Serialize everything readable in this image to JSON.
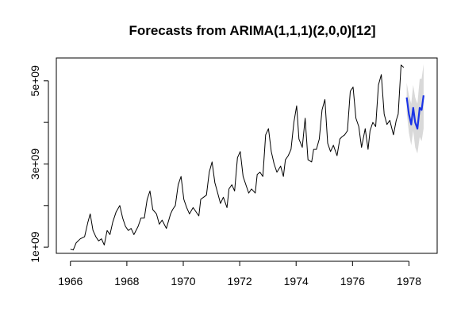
{
  "chart_data": {
    "type": "line",
    "title": "Forecasts from ARIMA(1,1,1)(2,0,0)[12]",
    "xlabel": "",
    "ylabel": "",
    "xlim": [
      1965.5,
      1979.0
    ],
    "ylim": [
      850000000,
      5550000000
    ],
    "x_ticks": [
      1966,
      1968,
      1970,
      1972,
      1974,
      1976,
      1978
    ],
    "x_tick_labels": [
      "1966",
      "1968",
      "1970",
      "1972",
      "1974",
      "1976",
      "1978"
    ],
    "y_ticks": [
      1000000000,
      3000000000,
      5000000000
    ],
    "y_tick_labels": [
      "1e+09",
      "3e+09",
      "5e+09"
    ],
    "y_minor_ticks": [
      2000000000,
      4000000000
    ],
    "grid": false,
    "legend": "none",
    "series": [
      {
        "role": "observed",
        "color": "#000000",
        "x": [
          1966.0,
          1966.1,
          1966.2,
          1966.35,
          1966.5,
          1966.62,
          1966.7,
          1966.8,
          1966.9,
          1967.0,
          1967.1,
          1967.2,
          1967.3,
          1967.4,
          1967.5,
          1967.62,
          1967.75,
          1967.85,
          1967.95,
          1968.05,
          1968.15,
          1968.25,
          1968.4,
          1968.5,
          1968.62,
          1968.72,
          1968.82,
          1968.92,
          1969.05,
          1969.15,
          1969.25,
          1969.4,
          1969.55,
          1969.62,
          1969.72,
          1969.82,
          1969.92,
          1970.02,
          1970.12,
          1970.22,
          1970.35,
          1970.55,
          1970.62,
          1970.72,
          1970.82,
          1970.92,
          1971.02,
          1971.12,
          1971.22,
          1971.32,
          1971.42,
          1971.55,
          1971.62,
          1971.72,
          1971.82,
          1971.92,
          1972.02,
          1972.12,
          1972.22,
          1972.32,
          1972.42,
          1972.55,
          1972.62,
          1972.72,
          1972.82,
          1972.92,
          1973.02,
          1973.12,
          1973.22,
          1973.32,
          1973.45,
          1973.55,
          1973.62,
          1973.72,
          1973.82,
          1973.92,
          1974.02,
          1974.1,
          1974.22,
          1974.32,
          1974.42,
          1974.55,
          1974.62,
          1974.72,
          1974.82,
          1974.92,
          1975.02,
          1975.12,
          1975.22,
          1975.32,
          1975.45,
          1975.55,
          1975.62,
          1975.72,
          1975.82,
          1975.92,
          1976.02,
          1976.12,
          1976.22,
          1976.32,
          1976.45,
          1976.55,
          1976.62,
          1976.72,
          1976.82,
          1976.92,
          1977.02,
          1977.12,
          1977.22,
          1977.32,
          1977.45,
          1977.55,
          1977.62
        ],
        "y": [
          950000000,
          930000000,
          1100000000,
          1200000000,
          1250000000,
          1600000000,
          1800000000,
          1400000000,
          1250000000,
          1150000000,
          1200000000,
          1050000000,
          1400000000,
          1300000000,
          1600000000,
          1850000000,
          2000000000,
          1700000000,
          1500000000,
          1400000000,
          1450000000,
          1300000000,
          1500000000,
          1700000000,
          1700000000,
          2150000000,
          2350000000,
          1900000000,
          1800000000,
          1550000000,
          1650000000,
          1450000000,
          1800000000,
          1900000000,
          2000000000,
          2500000000,
          2700000000,
          2150000000,
          1950000000,
          1800000000,
          1950000000,
          1750000000,
          2150000000,
          2200000000,
          2250000000,
          2800000000,
          3050000000,
          2550000000,
          2300000000,
          2050000000,
          2200000000,
          1950000000,
          2400000000,
          2500000000,
          2350000000,
          3150000000,
          3300000000,
          2700000000,
          2500000000,
          2300000000,
          2400000000,
          2300000000,
          2750000000,
          2800000000,
          2700000000,
          3700000000,
          3850000000,
          3300000000,
          3000000000,
          2800000000,
          2950000000,
          2700000000,
          3100000000,
          3200000000,
          3350000000,
          4000000000,
          4400000000,
          3600000000,
          3400000000,
          4100000000,
          3100000000,
          3050000000,
          3350000000,
          3350000000,
          3600000000,
          4300000000,
          4550000000,
          3500000000,
          3300000000,
          3450000000,
          3200000000,
          3600000000,
          3650000000,
          3700000000,
          3800000000,
          4750000000,
          4850000000,
          4100000000,
          3900000000,
          3400000000,
          3850000000,
          3350000000,
          3800000000,
          4000000000,
          3900000000,
          4900000000,
          5150000000,
          4200000000,
          3950000000,
          4050000000,
          3700000000,
          4050000000,
          4200000000
        ]
      },
      {
        "role": "observed",
        "color": "#000000",
        "x": [
          1977.62,
          1977.72,
          1977.82
        ],
        "y": [
          4200000000,
          5380000000,
          5320000000
        ]
      },
      {
        "role": "forecast",
        "color": "#1a33e6",
        "x": [
          1977.92,
          1978.0,
          1978.08,
          1978.15,
          1978.22,
          1978.3,
          1978.38,
          1978.45,
          1978.52
        ],
        "y": [
          4600000000,
          4200000000,
          3950000000,
          4350000000,
          4000000000,
          3850000000,
          4350000000,
          4300000000,
          4650000000
        ]
      }
    ],
    "band": {
      "role": "prediction-interval",
      "color": "#d9d9d9",
      "x": [
        1977.92,
        1978.0,
        1978.08,
        1978.15,
        1978.22,
        1978.3,
        1978.38,
        1978.45,
        1978.52
      ],
      "lower": [
        4250000000,
        3750000000,
        3450000000,
        3800000000,
        3400000000,
        3250000000,
        3650000000,
        3550000000,
        3850000000
      ],
      "upper": [
        4950000000,
        4650000000,
        4450000000,
        4900000000,
        4600000000,
        4450000000,
        5050000000,
        5050000000,
        5400000000
      ]
    }
  }
}
